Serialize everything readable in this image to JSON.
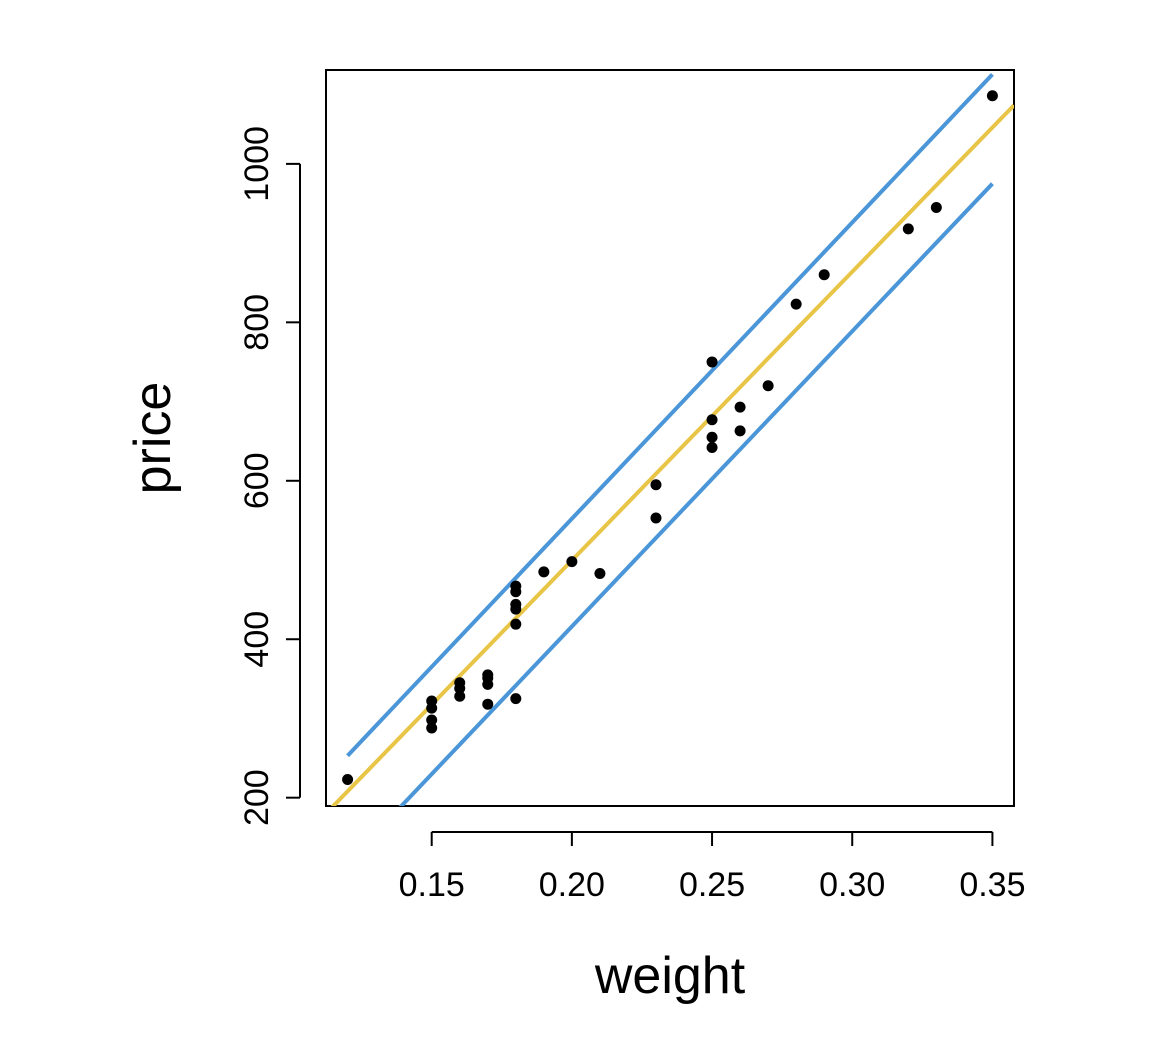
{
  "chart_data": {
    "type": "scatter",
    "title": "",
    "xlabel": "weight",
    "ylabel": "price",
    "xlim": [
      0.1123,
      0.3577
    ],
    "ylim": [
      189.5,
      1118.5
    ],
    "x_ticks": [
      0.15,
      0.2,
      0.25,
      0.3,
      0.35
    ],
    "x_tick_labels": [
      "0.15",
      "0.20",
      "0.25",
      "0.30",
      "0.35"
    ],
    "y_ticks": [
      200,
      400,
      600,
      800,
      1000
    ],
    "y_tick_labels": [
      "200",
      "400",
      "600",
      "800",
      "1000"
    ],
    "grid": false,
    "legend": "none",
    "points": [
      {
        "x": 0.12,
        "y": 223
      },
      {
        "x": 0.15,
        "y": 288
      },
      {
        "x": 0.15,
        "y": 298
      },
      {
        "x": 0.15,
        "y": 313
      },
      {
        "x": 0.15,
        "y": 322
      },
      {
        "x": 0.16,
        "y": 328
      },
      {
        "x": 0.16,
        "y": 338
      },
      {
        "x": 0.16,
        "y": 345
      },
      {
        "x": 0.17,
        "y": 318
      },
      {
        "x": 0.17,
        "y": 343
      },
      {
        "x": 0.17,
        "y": 351
      },
      {
        "x": 0.17,
        "y": 355
      },
      {
        "x": 0.18,
        "y": 325
      },
      {
        "x": 0.18,
        "y": 419
      },
      {
        "x": 0.18,
        "y": 438
      },
      {
        "x": 0.18,
        "y": 444
      },
      {
        "x": 0.18,
        "y": 460
      },
      {
        "x": 0.18,
        "y": 467
      },
      {
        "x": 0.19,
        "y": 485
      },
      {
        "x": 0.2,
        "y": 498
      },
      {
        "x": 0.21,
        "y": 483
      },
      {
        "x": 0.23,
        "y": 553
      },
      {
        "x": 0.23,
        "y": 595
      },
      {
        "x": 0.25,
        "y": 642
      },
      {
        "x": 0.25,
        "y": 655
      },
      {
        "x": 0.25,
        "y": 677
      },
      {
        "x": 0.25,
        "y": 750
      },
      {
        "x": 0.26,
        "y": 663
      },
      {
        "x": 0.26,
        "y": 693
      },
      {
        "x": 0.27,
        "y": 720
      },
      {
        "x": 0.28,
        "y": 823
      },
      {
        "x": 0.29,
        "y": 860
      },
      {
        "x": 0.32,
        "y": 918
      },
      {
        "x": 0.33,
        "y": 945
      },
      {
        "x": 0.35,
        "y": 1086
      }
    ],
    "lines": [
      {
        "role": "fit",
        "color": "#e8c547",
        "x": [
          0.1123,
          0.3577
        ],
        "y": [
          180,
          1074
        ]
      },
      {
        "role": "upper-band",
        "color": "#4a96d8",
        "x": [
          0.12,
          0.35
        ],
        "y": [
          253,
          1113
        ]
      },
      {
        "role": "lower-band",
        "color": "#4a96d8",
        "x": [
          0.12,
          0.35
        ],
        "y": [
          118,
          975
        ]
      }
    ],
    "point_color": "#000000"
  }
}
